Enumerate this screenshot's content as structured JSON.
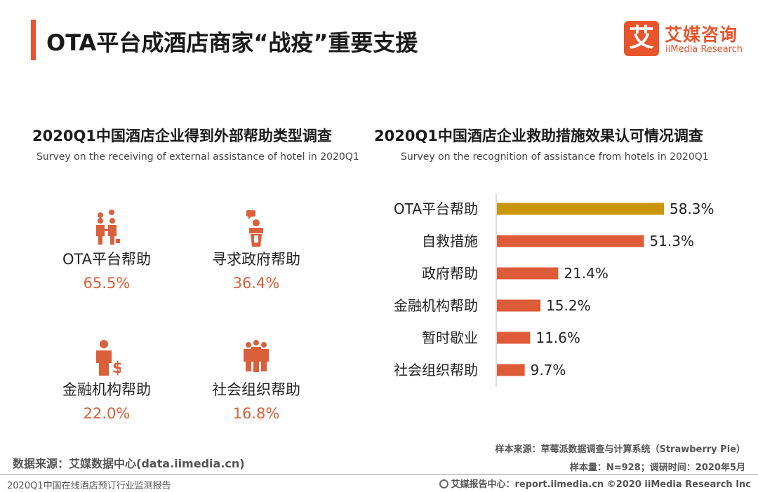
{
  "page_title": "OTA平台成酒店商家“战疫”重要支援",
  "logo": {
    "mark": "艾",
    "name_cn": "艾媒咨询",
    "name_en": "iiMedia Research"
  },
  "left_section": {
    "title": "2020Q1中国酒店企业得到外部帮助类型调查",
    "subtitle": "Survey on the receiving of external assistance of hotel in 2020Q1",
    "items": [
      {
        "label": "OTA平台帮助",
        "value": "65.5%",
        "icon": "business-handshake-icon"
      },
      {
        "label": "寻求政府帮助",
        "value": "36.4%",
        "icon": "speaker-podium-icon"
      },
      {
        "label": "金融机构帮助",
        "value": "22.0%",
        "icon": "businessman-dollar-icon"
      },
      {
        "label": "社会组织帮助",
        "value": "16.8%",
        "icon": "group-people-icon"
      }
    ]
  },
  "right_section": {
    "title": "2020Q1中国酒店企业救助措施效果认可情况调查",
    "subtitle": "Survey on the recognition of assistance from hotels in 2020Q1"
  },
  "chart_data": {
    "type": "bar",
    "orientation": "horizontal",
    "title": "2020Q1中国酒店企业救助措施效果认可情况调查",
    "categories": [
      "OTA平台帮助",
      "自救措施",
      "政府帮助",
      "金融机构帮助",
      "暂时歇业",
      "社会组织帮助"
    ],
    "values": [
      58.3,
      51.3,
      21.4,
      15.2,
      11.6,
      9.7
    ],
    "value_labels": [
      "58.3%",
      "51.3%",
      "21.4%",
      "15.2%",
      "11.6%",
      "9.7%"
    ],
    "unit": "%",
    "xlim": [
      0,
      60
    ],
    "highlight_index": 0,
    "colors": {
      "highlight": "#c9960a",
      "default": "#de5b3a"
    }
  },
  "notes": {
    "sample_source": "样本来源：草莓派数据调查与计算系统（Strawberry Pie）",
    "sample_size": "样本量：N=928；调研时间：2020年5月",
    "data_source": "数据来源：艾媒数据中心(data.iimedia.cn)"
  },
  "footer": {
    "left": "2020Q1中国在线酒店预订行业监测报告",
    "right": "艾媒报告中心：report.iimedia.cn  ©2020  iiMedia Research  Inc"
  },
  "colors": {
    "accent": "#e8542c",
    "value_text": "#d9603a"
  }
}
